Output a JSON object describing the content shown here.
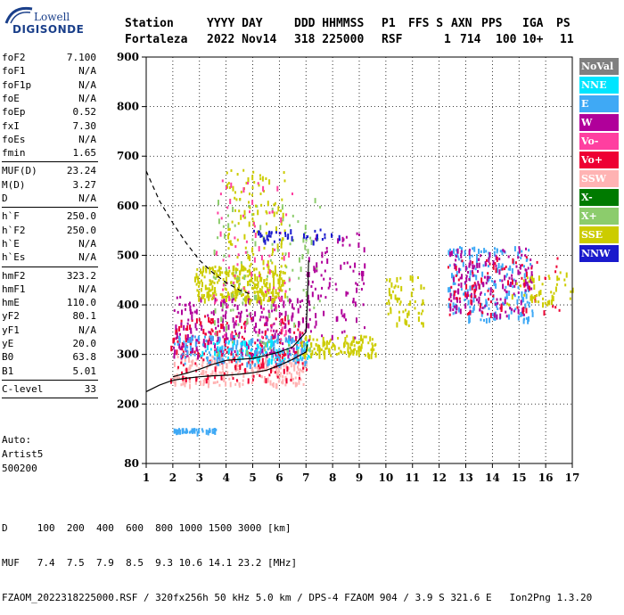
{
  "logo": {
    "line1": "Lowell",
    "line2": "DIGISONDE"
  },
  "header": {
    "row1": [
      "Station",
      "YYYY DAY",
      "DDD HHMMSS",
      "P1",
      "FFS S",
      "AXN",
      "PPS",
      "IGA",
      "PS"
    ],
    "row2": [
      "Fortaleza",
      "2022 Nov14",
      "318 225000",
      "RSF",
      "1",
      "714",
      "100",
      "10+",
      "11"
    ]
  },
  "parameters": [
    [
      {
        "name": "foF2",
        "value": "7.100"
      },
      {
        "name": "foF1",
        "value": "N/A"
      },
      {
        "name": "foF1p",
        "value": "N/A"
      },
      {
        "name": "foE",
        "value": "N/A"
      },
      {
        "name": "foEp",
        "value": "0.52"
      },
      {
        "name": "fxI",
        "value": "7.30"
      },
      {
        "name": "foEs",
        "value": "N/A"
      },
      {
        "name": "fmin",
        "value": "1.65"
      }
    ],
    [
      {
        "name": "MUF(D)",
        "value": "23.24"
      },
      {
        "name": "M(D)",
        "value": "3.27"
      },
      {
        "name": "D",
        "value": "N/A"
      }
    ],
    [
      {
        "name": "h`F",
        "value": "250.0"
      },
      {
        "name": "h`F2",
        "value": "250.0"
      },
      {
        "name": "h`E",
        "value": "N/A"
      },
      {
        "name": "h`Es",
        "value": "N/A"
      }
    ],
    [
      {
        "name": "hmF2",
        "value": "323.2"
      },
      {
        "name": "hmF1",
        "value": "N/A"
      },
      {
        "name": "hmE",
        "value": "110.0"
      },
      {
        "name": "yF2",
        "value": "80.1"
      },
      {
        "name": "yF1",
        "value": "N/A"
      },
      {
        "name": "yE",
        "value": "20.0"
      },
      {
        "name": "B0",
        "value": "63.8"
      },
      {
        "name": "B1",
        "value": "5.01"
      }
    ],
    [
      {
        "name": "C-level",
        "value": "33"
      }
    ]
  ],
  "autoscaling": {
    "line1": "Auto:",
    "line2": "Artist5",
    "line3": "500200"
  },
  "legend": [
    {
      "label": "NoVal",
      "bg": "#808080",
      "fg": "#ffffff"
    },
    {
      "label": "NNE",
      "bg": "#00e5ff",
      "fg": "#ffffff"
    },
    {
      "label": "E",
      "bg": "#3fa9f5",
      "fg": "#ffffff"
    },
    {
      "label": "W",
      "bg": "#b0009a",
      "fg": "#ffffff"
    },
    {
      "label": "Vo-",
      "bg": "#ff3fa0",
      "fg": "#ffffff"
    },
    {
      "label": "Vo+",
      "bg": "#ee0033",
      "fg": "#ffffff"
    },
    {
      "label": "SSW",
      "bg": "#ffb3b3",
      "fg": "#ffffff"
    },
    {
      "label": "X-",
      "bg": "#007a00",
      "fg": "#ffffff"
    },
    {
      "label": "X+",
      "bg": "#8ccc6c",
      "fg": "#ffffff"
    },
    {
      "label": "SSE",
      "bg": "#cccc00",
      "fg": "#ffffff"
    },
    {
      "label": "NNW",
      "bg": "#1a1acc",
      "fg": "#ffffff"
    }
  ],
  "chart_data": {
    "type": "scatter",
    "xlim": [
      1,
      17
    ],
    "ylim": [
      80,
      900
    ],
    "x_ticks": [
      "1",
      "2",
      "3",
      "4",
      "5",
      "6",
      "7",
      "8",
      "9",
      "10",
      "11",
      "12",
      "13",
      "14",
      "15",
      "16",
      "17"
    ],
    "y_ticks": [
      "80",
      "200",
      "300",
      "400",
      "500",
      "600",
      "700",
      "800",
      "900"
    ],
    "grid": true,
    "clusters": [
      {
        "legend": "SSW",
        "color": "#ffb3b3",
        "x": [
          2.0,
          7.0
        ],
        "y": [
          240,
          300
        ],
        "n": 260
      },
      {
        "legend": "Vo+",
        "color": "#ee0033",
        "x": [
          1.9,
          7.0
        ],
        "y": [
          250,
          380
        ],
        "n": 220
      },
      {
        "legend": "W",
        "color": "#b0009a",
        "x": [
          2.0,
          7.0
        ],
        "y": [
          300,
          420
        ],
        "n": 260
      },
      {
        "legend": "E",
        "color": "#3fa9f5",
        "x": [
          2.0,
          7.0
        ],
        "y": [
          280,
          340
        ],
        "n": 160
      },
      {
        "legend": "NNE",
        "color": "#00e5ff",
        "x": [
          3.0,
          7.2
        ],
        "y": [
          290,
          330
        ],
        "n": 80
      },
      {
        "legend": "SSE",
        "color": "#cccc00",
        "x": [
          2.8,
          6.2
        ],
        "y": [
          410,
          480
        ],
        "n": 260
      },
      {
        "legend": "SSE",
        "color": "#cccc00",
        "x": [
          6.8,
          9.6
        ],
        "y": [
          300,
          340
        ],
        "n": 120
      },
      {
        "legend": "X+",
        "color": "#8ccc6c",
        "x": [
          3.5,
          7.5
        ],
        "y": [
          300,
          620
        ],
        "n": 120
      },
      {
        "legend": "SSE",
        "color": "#cccc00",
        "x": [
          4.0,
          6.2
        ],
        "y": [
          450,
          680
        ],
        "n": 120
      },
      {
        "legend": "Vo-",
        "color": "#ff3fa0",
        "x": [
          3.5,
          6.5
        ],
        "y": [
          330,
          660
        ],
        "n": 90
      },
      {
        "legend": "W",
        "color": "#b0009a",
        "x": [
          7.0,
          9.2
        ],
        "y": [
          330,
          560
        ],
        "n": 90
      },
      {
        "legend": "SSE",
        "color": "#cccc00",
        "x": [
          10.0,
          11.4
        ],
        "y": [
          360,
          460
        ],
        "n": 60
      },
      {
        "legend": "E",
        "color": "#3fa9f5",
        "x": [
          12.3,
          15.5
        ],
        "y": [
          370,
          520
        ],
        "n": 200
      },
      {
        "legend": "W",
        "color": "#b0009a",
        "x": [
          12.3,
          15.5
        ],
        "y": [
          380,
          520
        ],
        "n": 160
      },
      {
        "legend": "Vo+",
        "color": "#ee0033",
        "x": [
          12.3,
          16.6
        ],
        "y": [
          380,
          500
        ],
        "n": 80
      },
      {
        "legend": "SSE",
        "color": "#cccc00",
        "x": [
          14.5,
          17.0
        ],
        "y": [
          400,
          470
        ],
        "n": 50
      },
      {
        "legend": "E",
        "color": "#3fa9f5",
        "x": [
          2.0,
          3.6
        ],
        "y": [
          145,
          152
        ],
        "n": 50
      },
      {
        "legend": "NNW",
        "color": "#1a1acc",
        "x": [
          5.0,
          8.3
        ],
        "y": [
          530,
          555
        ],
        "n": 40
      }
    ],
    "traces": [
      {
        "style": "solid",
        "x": [
          1,
          1.5,
          2,
          2.5,
          3,
          3.5,
          4,
          4.5,
          5,
          5.5,
          6,
          6.5,
          7,
          7.05
        ],
        "y": [
          225,
          238,
          248,
          252,
          255,
          257,
          258,
          260,
          263,
          268,
          278,
          290,
          305,
          320
        ]
      },
      {
        "style": "solid",
        "x": [
          2,
          2.5,
          3,
          3.5,
          4,
          4.5,
          5,
          5.5,
          6,
          6.5,
          7,
          7.05,
          7.1
        ],
        "y": [
          255,
          262,
          270,
          280,
          288,
          290,
          292,
          298,
          305,
          315,
          345,
          400,
          490
        ]
      },
      {
        "style": "dashed",
        "x": [
          1,
          1.5,
          2,
          2.5,
          3,
          3.5,
          4,
          4.5,
          5
        ],
        "y": [
          670,
          610,
          565,
          525,
          490,
          465,
          445,
          430,
          420
        ]
      }
    ]
  },
  "footer": {
    "line1": "D     100  200  400  600  800 1000 1500 3000 [km]",
    "line2": "MUF   7.4  7.5  7.9  8.5  9.3 10.6 14.1 23.2 [MHz]",
    "line3": "FZAOM_2022318225000.RSF / 320fx256h 50 kHz 5.0 km / DPS-4 FZAOM 904 / 3.9 S 321.6 E   Ion2Png 1.3.20"
  }
}
